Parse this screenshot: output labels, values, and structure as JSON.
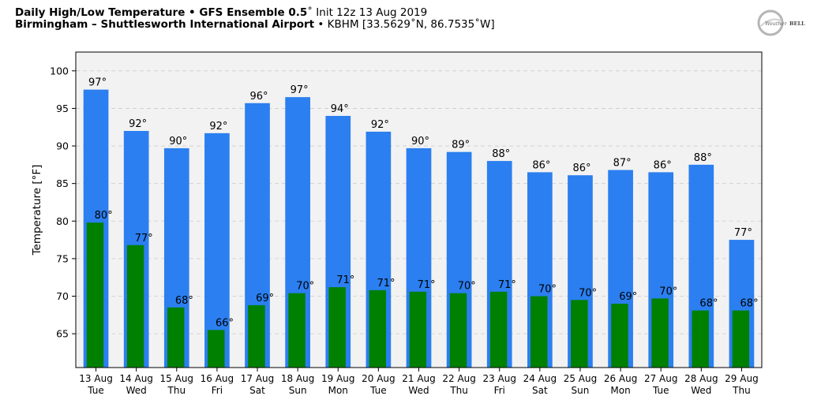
{
  "header": {
    "title_bold": "Daily High/Low Temperature • GFS Ensemble 0.5",
    "title_rest": "˚ Init 12z 13 Aug 2019",
    "subtitle_bold": "Birmingham – Shuttlesworth International Airport",
    "subtitle_rest": " • KBHM [33.5629˚N, 86.7535˚W]"
  },
  "logo": {
    "text_left": "Weather",
    "text_right": "BELL"
  },
  "colors": {
    "high": "#2b7ff0",
    "low": "#008000",
    "plot_bg": "#f2f2f2",
    "grid": "#cccccc"
  },
  "chart_data": {
    "type": "bar",
    "ylabel": "Temperature [°F]",
    "ylim": [
      60.5,
      102.5
    ],
    "yticks": [
      65,
      70,
      75,
      80,
      85,
      90,
      95,
      100
    ],
    "grid": true,
    "categories": [
      [
        "13 Aug",
        "Tue"
      ],
      [
        "14 Aug",
        "Wed"
      ],
      [
        "15 Aug",
        "Thu"
      ],
      [
        "16 Aug",
        "Fri"
      ],
      [
        "17 Aug",
        "Sat"
      ],
      [
        "18 Aug",
        "Sun"
      ],
      [
        "19 Aug",
        "Mon"
      ],
      [
        "20 Aug",
        "Tue"
      ],
      [
        "21 Aug",
        "Wed"
      ],
      [
        "22 Aug",
        "Thu"
      ],
      [
        "23 Aug",
        "Fri"
      ],
      [
        "24 Aug",
        "Sat"
      ],
      [
        "25 Aug",
        "Sun"
      ],
      [
        "26 Aug",
        "Mon"
      ],
      [
        "27 Aug",
        "Tue"
      ],
      [
        "28 Aug",
        "Wed"
      ],
      [
        "29 Aug",
        "Thu"
      ]
    ],
    "series": [
      {
        "values": [
          97.5,
          92,
          89.7,
          91.7,
          95.7,
          96.5,
          94,
          91.9,
          89.7,
          89.2,
          88,
          86.5,
          86.1,
          86.8,
          86.5,
          87.5,
          77.5
        ],
        "labels": [
          "97°",
          "92°",
          "90°",
          "92°",
          "96°",
          "97°",
          "94°",
          "92°",
          "90°",
          "89°",
          "88°",
          "86°",
          "86°",
          "87°",
          "86°",
          "88°",
          "77°"
        ]
      },
      {
        "values": [
          79.8,
          76.8,
          68.5,
          65.5,
          68.8,
          70.4,
          71.2,
          70.8,
          70.6,
          70.4,
          70.6,
          70,
          69.5,
          69,
          69.7,
          68.1,
          68.1
        ],
        "labels": [
          "80°",
          "77°",
          "68°",
          "66°",
          "69°",
          "70°",
          "71°",
          "71°",
          "71°",
          "70°",
          "71°",
          "70°",
          "70°",
          "69°",
          "70°",
          "68°",
          "68°"
        ]
      }
    ]
  }
}
